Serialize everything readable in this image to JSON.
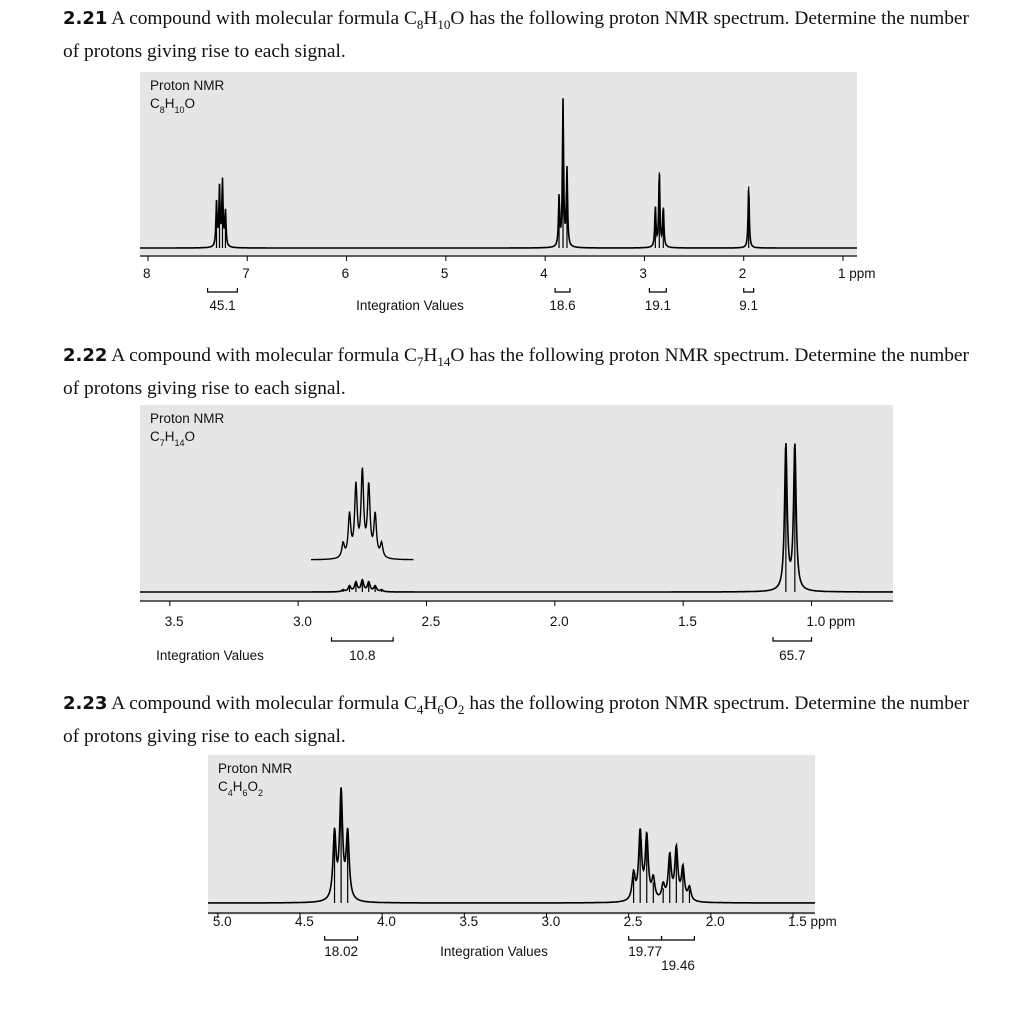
{
  "problems": [
    {
      "number": "2.21",
      "text_before": "A compound with molecular formula",
      "formula": "C8H10O",
      "text_after": "has the following proton NMR spectrum. Determine the number of protons giving rise to each signal.",
      "spectrum": {
        "label": "Proton NMR",
        "formula": "C8H10O",
        "xlim": [
          8,
          1
        ],
        "xticks": [
          8,
          7,
          6,
          5,
          4,
          3,
          2,
          {
            "value": 1,
            "label": "1 ppm"
          }
        ],
        "integration_label": "Integration Values",
        "integrals": [
          {
            "label": "45.1",
            "from": 7.4,
            "to": 7.1
          },
          {
            "label": "18.6",
            "from": 3.9,
            "to": 3.75
          },
          {
            "label": "19.1",
            "from": 2.95,
            "to": 2.78
          },
          {
            "label": "9.1",
            "from": 2.0,
            "to": 1.9
          }
        ],
        "peaks": [
          {
            "ppm": 7.31,
            "height": 25
          },
          {
            "ppm": 7.28,
            "height": 33
          },
          {
            "ppm": 7.25,
            "height": 37
          },
          {
            "ppm": 7.22,
            "height": 20
          },
          {
            "ppm": 3.86,
            "height": 28
          },
          {
            "ppm": 3.82,
            "height": 83
          },
          {
            "ppm": 3.78,
            "height": 44
          },
          {
            "ppm": 2.89,
            "height": 23
          },
          {
            "ppm": 2.85,
            "height": 43
          },
          {
            "ppm": 2.81,
            "height": 23
          },
          {
            "ppm": 1.95,
            "height": 35
          }
        ]
      }
    },
    {
      "number": "2.22",
      "text_before": "A compound with molecular formula",
      "formula": "C7H14O",
      "text_after": "has the following proton NMR spectrum. Determine the number of protons giving rise to each signal.",
      "spectrum": {
        "label": "Proton NMR",
        "formula": "C7H14O",
        "xlim": [
          3.62,
          0.78
        ],
        "xticks": [
          3.5,
          {
            "value": 3,
            "label": "3.0"
          },
          2.5,
          {
            "value": 2,
            "label": "2.0"
          },
          1.5,
          {
            "value": 1,
            "label": "1.0 ppm"
          }
        ],
        "integration_label": "Integration Values",
        "integrals": [
          {
            "label": "10.8",
            "from": 2.87,
            "to": 2.63
          },
          {
            "label": "65.7",
            "from": 1.15,
            "to": 1.0
          }
        ],
        "peaks": [
          {
            "ppm": 2.825,
            "height": 1
          },
          {
            "ppm": 2.8,
            "height": 3
          },
          {
            "ppm": 2.775,
            "height": 5
          },
          {
            "ppm": 2.75,
            "height": 6
          },
          {
            "ppm": 2.725,
            "height": 5
          },
          {
            "ppm": 2.7,
            "height": 3
          },
          {
            "ppm": 2.675,
            "height": 1
          },
          {
            "ppm": 1.1,
            "height": 78
          },
          {
            "ppm": 1.065,
            "height": 78
          }
        ]
      }
    },
    {
      "number": "2.23",
      "text_before": "A compound with molecular formula",
      "formula": "C4H6O2",
      "text_after": "has the following proton NMR spectrum. Determine the number of protons giving rise to each signal.",
      "spectrum": {
        "label": "Proton NMR",
        "formula": "C4H6O2",
        "xlim": [
          5.06,
          1.36
        ],
        "xticks": [
          {
            "value": 5,
            "label": "5.0"
          },
          4.5,
          {
            "value": 4,
            "label": "4.0"
          },
          3.5,
          {
            "value": 3,
            "label": "3.0"
          },
          2.5,
          {
            "value": 2,
            "label": "2.0"
          },
          {
            "value": 1.5,
            "label": "1.5 ppm"
          }
        ],
        "integration_label": "Integration Values",
        "integrals": [
          {
            "label": "18.02",
            "from": 4.35,
            "to": 4.15
          },
          {
            "label": "19.77",
            "from": 2.5,
            "to": 2.3
          },
          {
            "label": "19.46",
            "from": 2.3,
            "to": 2.1
          }
        ],
        "peaks": [
          {
            "ppm": 4.29,
            "height": 45
          },
          {
            "ppm": 4.25,
            "height": 72
          },
          {
            "ppm": 4.21,
            "height": 45
          },
          {
            "ppm": 2.47,
            "height": 18
          },
          {
            "ppm": 2.43,
            "height": 46
          },
          {
            "ppm": 2.39,
            "height": 43
          },
          {
            "ppm": 2.35,
            "height": 14
          },
          {
            "ppm": 2.29,
            "height": 10
          },
          {
            "ppm": 2.25,
            "height": 30
          },
          {
            "ppm": 2.21,
            "height": 35
          },
          {
            "ppm": 2.17,
            "height": 22
          },
          {
            "ppm": 2.13,
            "height": 9
          }
        ]
      }
    }
  ]
}
